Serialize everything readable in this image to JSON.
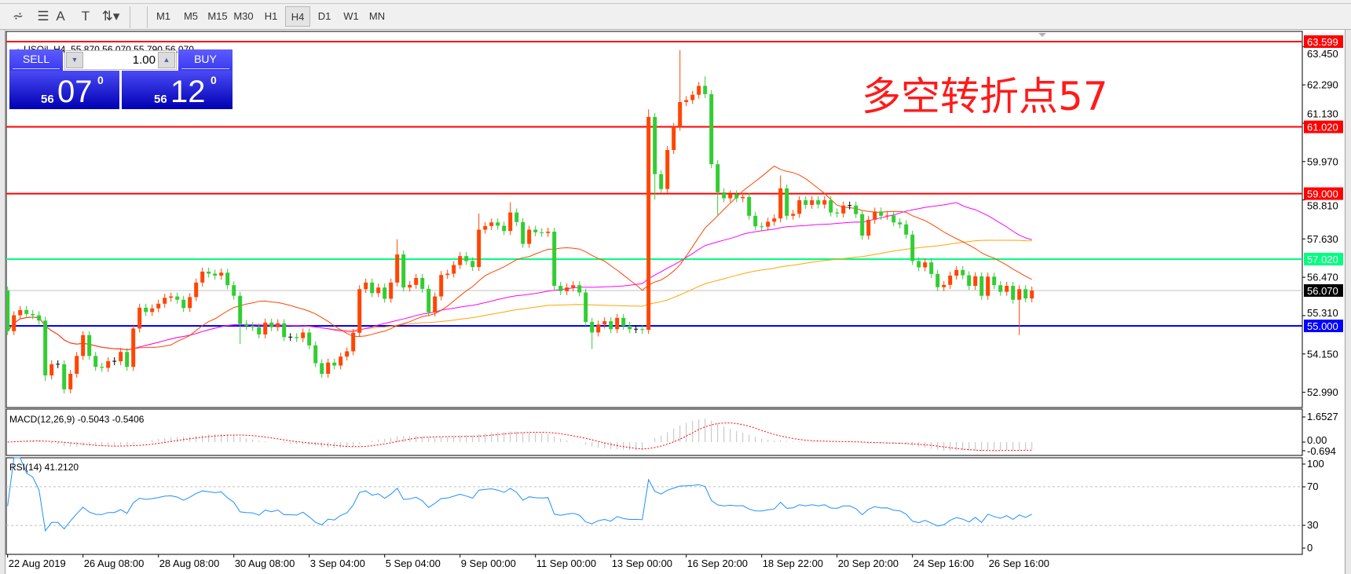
{
  "toolbar": {
    "tools": [
      {
        "icon": "fibonacci-expansion-icon",
        "glyph": "⩫"
      },
      {
        "icon": "fibonacci-retracement-icon",
        "glyph": "☰"
      },
      {
        "icon": "text-icon",
        "glyph": "A"
      },
      {
        "icon": "text-label-icon",
        "glyph": "T"
      },
      {
        "icon": "arrows-dropdown-icon",
        "glyph": "⇅▾"
      }
    ],
    "timeframes": [
      "M1",
      "M5",
      "M15",
      "M30",
      "H1",
      "H4",
      "D1",
      "W1",
      "MN"
    ],
    "active_timeframe": "H4"
  },
  "chart": {
    "header": "USOil.,H4  55.870 56.070 55.790 56.070",
    "annotation": "多空转折点57",
    "colors": {
      "bull": "#ff4500",
      "bear": "#32cd32",
      "ma_fast": "#ff4500",
      "ma_mid": "#ff00ff",
      "ma_slow": "#ffa500"
    }
  },
  "trade_panel": {
    "sell_label": "SELL",
    "buy_label": "BUY",
    "lot": "1.00",
    "sell": {
      "big": "56",
      "main": "07",
      "sup": "0"
    },
    "buy": {
      "big": "56",
      "main": "12",
      "sup": "0"
    }
  },
  "price_axis": {
    "ticks": [
      "63.450",
      "62.290",
      "61.130",
      "59.970",
      "58.810",
      "57.630",
      "56.470",
      "55.310",
      "54.150",
      "52.990"
    ],
    "levels": [
      {
        "label": "63.599",
        "color": "#ff0000",
        "text_color": "#ffffff"
      },
      {
        "label": "61.020",
        "color": "#ff0000",
        "text_color": "#ffffff"
      },
      {
        "label": "59.000",
        "color": "#ff0000",
        "text_color": "#ffffff"
      },
      {
        "label": "57.020",
        "color": "#00ff7f",
        "text_color": "#ffffff"
      },
      {
        "label": "55.000",
        "color": "#0000ff",
        "text_color": "#ffffff"
      }
    ],
    "current": {
      "label": "56.070",
      "color": "#c0c0c0",
      "box": "#000000"
    }
  },
  "macd": {
    "label": "MACD(12,26,9) -0.5043 -0.5406",
    "ticks": [
      "1.6527",
      "0.00",
      "-0.694"
    ]
  },
  "rsi": {
    "label": "RSI(14) 41.2120",
    "ticks": [
      "100",
      "70",
      "30",
      "0"
    ]
  },
  "time_axis": [
    "22 Aug 2019",
    "26 Aug 08:00",
    "28 Aug 08:00",
    "30 Aug 08:00",
    "3 Sep 04:00",
    "5 Sep 04:00",
    "9 Sep 00:00",
    "11 Sep 00:00",
    "13 Sep 00:00",
    "16 Sep 20:00",
    "18 Sep 22:00",
    "20 Sep 20:00",
    "24 Sep 16:00",
    "26 Sep 16:00"
  ],
  "chart_data": {
    "type": "candlestick",
    "symbol": "USOil.",
    "timeframe": "H4",
    "first_open": 56.07,
    "closes": [
      54.84,
      55.32,
      55.48,
      55.36,
      55.32,
      55.16,
      53.5,
      53.84,
      53.84,
      53.08,
      53.55,
      54.09,
      54.72,
      54.09,
      53.76,
      53.73,
      53.93,
      53.93,
      54.21,
      53.76,
      54.92,
      55.55,
      55.42,
      55.53,
      55.67,
      55.85,
      55.89,
      55.79,
      55.54,
      55.87,
      56.31,
      56.64,
      56.58,
      56.52,
      56.61,
      56.23,
      55.91,
      55.06,
      55.0,
      54.96,
      54.74,
      55.1,
      54.96,
      55.08,
      54.66,
      54.66,
      54.63,
      54.8,
      54.41,
      53.87,
      53.55,
      53.89,
      53.8,
      54.07,
      54.23,
      54.79,
      56.11,
      56.31,
      55.99,
      56.16,
      55.82,
      56.31,
      57.16,
      56.16,
      56.24,
      56.45,
      56.12,
      55.41,
      55.89,
      56.54,
      56.58,
      56.84,
      57.11,
      56.96,
      56.78,
      57.91,
      58.02,
      58.13,
      58.03,
      57.87,
      58.43,
      58.14,
      57.48,
      57.91,
      57.83,
      57.81,
      57.85,
      56.21,
      56.05,
      56.16,
      56.23,
      56.01,
      55.12,
      54.8,
      55.04,
      55.14,
      54.9,
      55.24,
      55.0,
      54.9,
      54.9,
      54.88,
      61.32,
      59.59,
      59.14,
      60.32,
      61.02,
      61.77,
      61.83,
      61.99,
      62.26,
      62.01,
      59.89,
      59.04,
      58.86,
      58.98,
      58.86,
      58.9,
      58.33,
      58.01,
      58.0,
      58.15,
      58.25,
      59.16,
      58.33,
      58.39,
      58.8,
      58.66,
      58.8,
      58.67,
      58.8,
      58.43,
      58.4,
      58.64,
      58.64,
      58.38,
      57.73,
      58.21,
      58.46,
      58.33,
      58.34,
      58.13,
      58.07,
      57.76,
      56.96,
      56.77,
      56.92,
      56.57,
      56.17,
      56.24,
      56.52,
      56.69,
      56.53,
      56.21,
      56.5,
      55.91,
      56.49,
      56.23,
      56.03,
      56.21,
      55.79,
      56.11,
      55.83,
      56.07
    ],
    "notable_highs": {
      "62": 57.62,
      "75": 58.4,
      "80": 58.74,
      "102": 61.55,
      "107": 63.34,
      "111": 62.55,
      "123": 59.55
    },
    "notable_lows": {
      "6": 53.33,
      "9": 52.95,
      "37": 54.45,
      "93": 54.3,
      "103": 58.82,
      "113": 58.35,
      "161": 54.72
    },
    "price_levels": [
      63.599,
      61.02,
      59.0,
      57.02,
      55.0
    ],
    "current_price": 56.07,
    "price_range": [
      52.5,
      63.9
    ],
    "macd_range": [
      -0.694,
      1.6527
    ],
    "rsi_range": [
      0,
      100
    ],
    "rsi_levels": [
      70,
      30
    ]
  }
}
